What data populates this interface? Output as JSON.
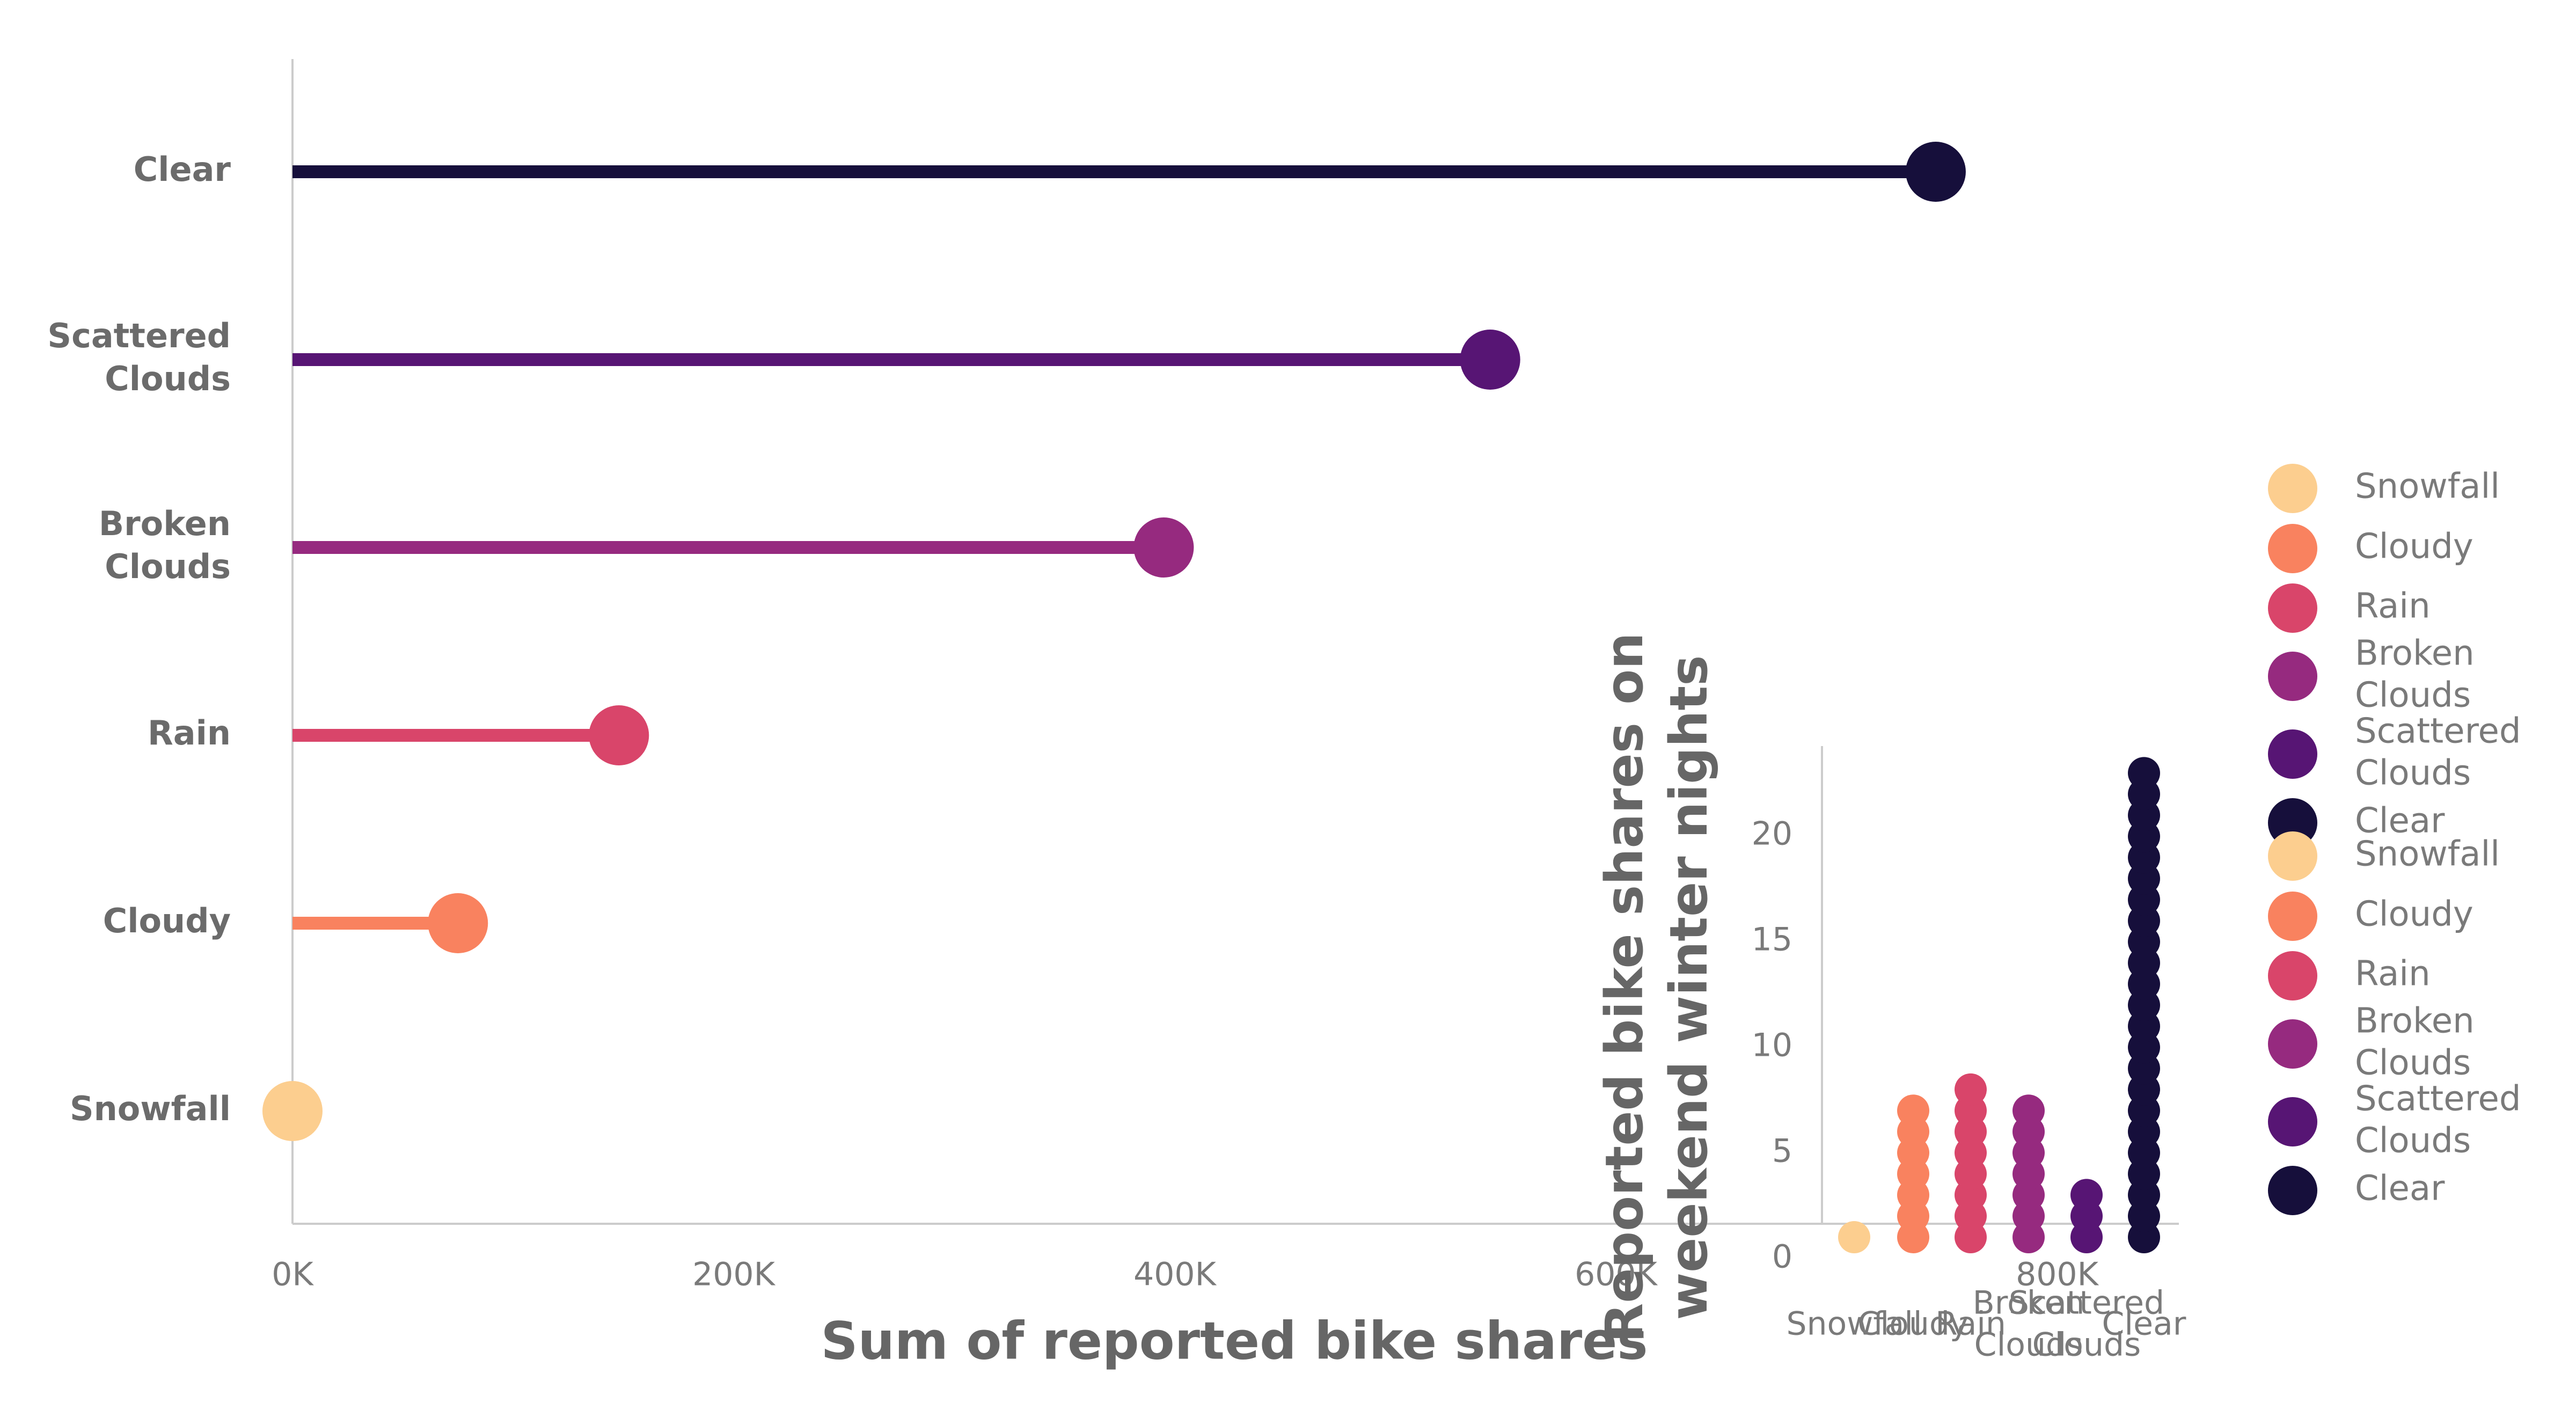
{
  "chart_data": [
    {
      "type": "lollipop",
      "orientation": "horizontal",
      "categories": [
        "Snowfall",
        "Cloudy",
        "Rain",
        "Broken Clouds",
        "Scattered Clouds",
        "Clear"
      ],
      "category_lines": [
        [
          "Snowfall"
        ],
        [
          "Cloudy"
        ],
        [
          "Rain"
        ],
        [
          "Broken",
          "Clouds"
        ],
        [
          "Scattered",
          "Clouds"
        ],
        [
          "Clear"
        ]
      ],
      "values": [
        0,
        75000,
        148000,
        395000,
        543000,
        745000
      ],
      "colors": [
        "#fcce8f",
        "#f9825f",
        "#d9456a",
        "#962a7f",
        "#571574",
        "#160f3b"
      ],
      "xlabel": "Sum of reported bike shares",
      "xlim": [
        0,
        900000
      ],
      "xticks": [
        0,
        200000,
        400000,
        600000,
        800000
      ],
      "xtick_labels": [
        "0K",
        "200K",
        "400K",
        "600K",
        "800K"
      ],
      "grid": false
    },
    {
      "type": "dot-column",
      "categories": [
        "Snowfall",
        "Cloudy",
        "Rain",
        "Broken Clouds",
        "Scattered Clouds",
        "Clear"
      ],
      "category_lines": [
        [
          "Snowfall"
        ],
        [
          "Cloudy"
        ],
        [
          "Rain"
        ],
        [
          "Broken",
          "Clouds"
        ],
        [
          "Scattered",
          "Clouds"
        ],
        [
          "Clear"
        ]
      ],
      "values": [
        1,
        7,
        8,
        7,
        3,
        23
      ],
      "colors": [
        "#fcce8f",
        "#f9825f",
        "#d9456a",
        "#962a7f",
        "#571574",
        "#160f3b"
      ],
      "ylabel_lines": [
        "Reported bike shares on",
        "weekend winter nights"
      ],
      "ylim": [
        0,
        24
      ],
      "yticks": [
        0,
        5,
        10,
        15,
        20
      ],
      "ytick_labels": [
        "0",
        "5",
        "10",
        "15",
        "20"
      ],
      "legend_position": "right",
      "legend": [
        {
          "label_lines": [
            "Snowfall"
          ],
          "color": "#fcce8f"
        },
        {
          "label_lines": [
            "Cloudy"
          ],
          "color": "#f9825f"
        },
        {
          "label_lines": [
            "Rain"
          ],
          "color": "#d9456a"
        },
        {
          "label_lines": [
            "Broken",
            "Clouds"
          ],
          "color": "#962a7f"
        },
        {
          "label_lines": [
            "Scattered",
            "Clouds"
          ],
          "color": "#571574"
        },
        {
          "label_lines": [
            "Clear"
          ],
          "color": "#160f3b"
        },
        {
          "label_lines": [
            "Snowfall"
          ],
          "color": "#fcce8f"
        },
        {
          "label_lines": [
            "Cloudy"
          ],
          "color": "#f9825f"
        },
        {
          "label_lines": [
            "Rain"
          ],
          "color": "#d9456a"
        },
        {
          "label_lines": [
            "Broken",
            "Clouds"
          ],
          "color": "#962a7f"
        },
        {
          "label_lines": [
            "Scattered",
            "Clouds"
          ],
          "color": "#571574"
        },
        {
          "label_lines": [
            "Clear"
          ],
          "color": "#160f3b"
        }
      ]
    }
  ]
}
